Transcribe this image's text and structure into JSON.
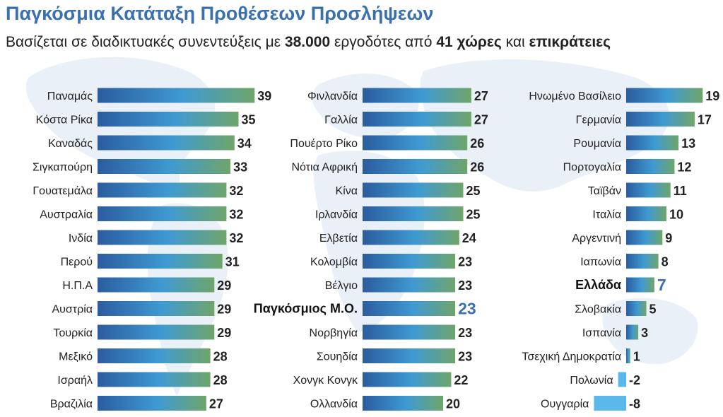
{
  "title": "Παγκόσμια Κατάταξη Προθέσεων Προσλήψεων",
  "subtitle": {
    "pre": "Βασίζεται σε διαδικτυακές συνεντεύξεις με ",
    "employers": "38.000",
    "mid1": " εργοδότες από ",
    "countries": "41 χώρες",
    "mid2": " και ",
    "territories": "επικράτειες"
  },
  "colors": {
    "bar_gradient_start": "#2b5c9e",
    "bar_gradient_mid": "#3f9ad2",
    "bar_gradient_end": "#6fa56a",
    "negative_bar": "#5bb8ea",
    "highlight_value": "#3a6fb0"
  },
  "chart_data": {
    "type": "bar",
    "orientation": "horizontal",
    "title": "Παγκόσμια Κατάταξη Προθέσεων Προσλήψεων",
    "columns": [
      {
        "categories": [
          "Παναμάς",
          "Κόστα Ρίκα",
          "Καναδάς",
          "Σιγκαπούρη",
          "Γουατεμάλα",
          "Αυστραλία",
          "Ινδία",
          "Περού",
          "Η.Π.Α",
          "Αυστρία",
          "Τουρκία",
          "Μεξικό",
          "Ισραήλ",
          "Βραζιλία"
        ],
        "values": [
          39,
          35,
          34,
          33,
          32,
          32,
          32,
          31,
          29,
          29,
          29,
          28,
          28,
          27
        ],
        "labels": [
          "39",
          "35",
          "34",
          "33",
          "32",
          "32",
          "32",
          "31",
          "29",
          "29",
          "29",
          "28",
          "28",
          "27"
        ],
        "highlight": []
      },
      {
        "categories": [
          "Φινλανδία",
          "Γαλλία",
          "Πουέρτο Ρίκο",
          "Νότια Αφρική",
          "Κίνα",
          "Ιρλανδία",
          "Ελβετία",
          "Κολομβία",
          "Βέλγιο",
          "Παγκόσμιος Μ.Ο.",
          "Νορβηγία",
          "Σουηδία",
          "Χονγκ Κονγκ",
          "Ολλανδία"
        ],
        "values": [
          27,
          27,
          26,
          26,
          25,
          25,
          24,
          23,
          23,
          23,
          23,
          23,
          22,
          20
        ],
        "labels": [
          "27",
          "27",
          "26",
          "26",
          "25",
          "25",
          "24",
          "23",
          "23",
          "23",
          "23",
          "23",
          "22",
          "20"
        ],
        "highlight": [
          "Παγκόσμιος Μ.Ο."
        ]
      },
      {
        "categories": [
          "Ηνωμένο Βασίλειο",
          "Γερμανία",
          "Ρουμανία",
          "Πορτογαλία",
          "Ταϊβάν",
          "Ιταλία",
          "Αργεντινή",
          "Ιαπωνία",
          "Ελλάδα",
          "Σλοβακία",
          "Ισπανία",
          "Τσεχική Δημοκρατία",
          "Πολωνία",
          "Ουγγαρία"
        ],
        "values": [
          19,
          17,
          13,
          12,
          11,
          10,
          9,
          8,
          7,
          5,
          3,
          1,
          -2,
          -8
        ],
        "labels": [
          "19",
          "17",
          "13",
          "12",
          "11",
          "10",
          "9",
          "8",
          "7",
          "5",
          "3",
          "1",
          "-2",
          "-8"
        ],
        "highlight": [
          "Ελλάδα"
        ]
      }
    ]
  }
}
